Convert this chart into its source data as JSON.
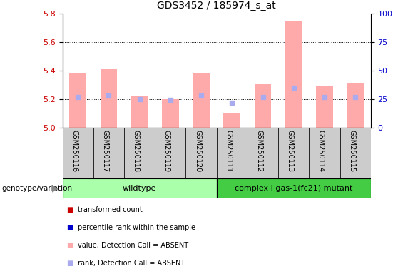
{
  "title": "GDS3452 / 185974_s_at",
  "samples": [
    "GSM250116",
    "GSM250117",
    "GSM250118",
    "GSM250119",
    "GSM250120",
    "GSM250111",
    "GSM250112",
    "GSM250113",
    "GSM250114",
    "GSM250115"
  ],
  "bar_values": [
    5.385,
    5.41,
    5.22,
    5.2,
    5.385,
    5.105,
    5.305,
    5.745,
    5.29,
    5.31
  ],
  "rank_values": [
    27,
    28,
    25,
    24,
    28,
    22,
    27,
    35,
    27,
    27
  ],
  "ylim_left": [
    5.0,
    5.8
  ],
  "ylim_right": [
    0,
    100
  ],
  "yticks_left": [
    5.0,
    5.2,
    5.4,
    5.6,
    5.8
  ],
  "yticks_right": [
    0,
    25,
    50,
    75,
    100
  ],
  "bar_color_absent": "#FFAAAA",
  "rank_color_absent": "#AAAAEE",
  "wildtype_color": "#AAFFAA",
  "mutant_color": "#44CC44",
  "group_bg_color": "#CCCCCC",
  "wildtype_label": "wildtype",
  "mutant_label": "complex I gas-1(fc21) mutant",
  "legend_items": [
    {
      "label": "transformed count",
      "color": "#CC0000"
    },
    {
      "label": "percentile rank within the sample",
      "color": "#0000CC"
    },
    {
      "label": "value, Detection Call = ABSENT",
      "color": "#FFAAAA"
    },
    {
      "label": "rank, Detection Call = ABSENT",
      "color": "#AAAAEE"
    }
  ],
  "genotype_label": "genotype/variation",
  "bar_width": 0.55,
  "rank_marker_size": 5
}
